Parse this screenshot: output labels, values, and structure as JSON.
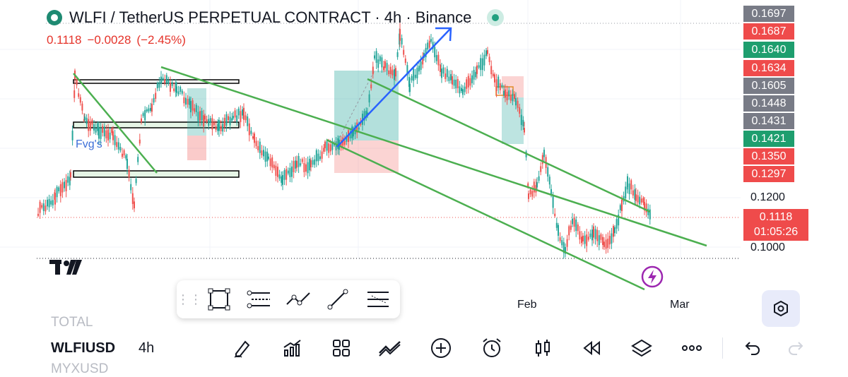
{
  "header": {
    "title": "WLFI / TetherUS PERPETUAL CONTRACT · 4h · Binance",
    "last_price": "0.1118",
    "change": "−0.0028",
    "change_pct": "(−2.45%)"
  },
  "colors": {
    "up": "#26a69a",
    "down": "#ef5350",
    "trendline": "#4caf50",
    "arrow": "#2962ff",
    "accent": "#22a080"
  },
  "price_scale": {
    "tags": [
      {
        "label": "0.1697",
        "color": "#787b86"
      },
      {
        "label": "0.1687",
        "color": "#ef4b4b"
      },
      {
        "label": "0.1640",
        "color": "#1e9e6e"
      },
      {
        "label": "0.1634",
        "color": "#ef4b4b"
      },
      {
        "label": "0.1605",
        "color": "#787b86"
      },
      {
        "label": "0.1448",
        "color": "#787b86"
      },
      {
        "label": "0.1431",
        "color": "#787b86"
      },
      {
        "label": "0.1421",
        "color": "#1e9e6e"
      },
      {
        "label": "0.1350",
        "color": "#ef4b4b"
      },
      {
        "label": "0.1297",
        "color": "#ef4b4b"
      }
    ],
    "levels": [
      "0.1200",
      "0.1000"
    ],
    "current_price": "0.1118",
    "countdown": "01:05:26"
  },
  "time_axis": {
    "labels": [
      "Feb",
      "Mar"
    ]
  },
  "annotations": {
    "fvg_label": "Fvg's"
  },
  "drawing_toolbar": {
    "tools": [
      "rectangle-tool-icon",
      "fib-retracement-icon",
      "path-tool-icon",
      "trend-line-icon",
      "fib-extension-icon"
    ]
  },
  "bottom_bar": {
    "symbol_above": "TOTAL",
    "symbol": "WLFIUSD",
    "symbol_below": "MYXUSD",
    "timeframe": "4h",
    "icons": [
      "pen-icon",
      "indicators-icon",
      "grid-icon",
      "compare-icon",
      "add-icon",
      "alarm-icon",
      "candles-icon",
      "replay-icon",
      "layers-icon",
      "more-icon",
      "undo-icon",
      "redo-icon"
    ]
  }
}
